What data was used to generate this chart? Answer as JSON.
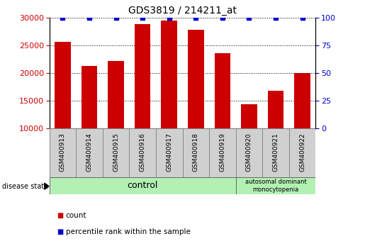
{
  "title": "GDS3819 / 214211_at",
  "samples": [
    "GSM400913",
    "GSM400914",
    "GSM400915",
    "GSM400916",
    "GSM400917",
    "GSM400918",
    "GSM400919",
    "GSM400920",
    "GSM400921",
    "GSM400922"
  ],
  "counts": [
    25600,
    21200,
    22200,
    28800,
    29500,
    27800,
    23500,
    14300,
    16800,
    20000
  ],
  "percentiles": [
    100,
    100,
    100,
    100,
    100,
    100,
    100,
    100,
    100,
    100
  ],
  "ylim_left": [
    10000,
    30000
  ],
  "ylim_right": [
    0,
    100
  ],
  "yticks_left": [
    10000,
    15000,
    20000,
    25000,
    30000
  ],
  "yticks_right": [
    0,
    25,
    50,
    75,
    100
  ],
  "bar_color": "#cc0000",
  "dot_color": "#0000cc",
  "tick_label_bg": "#d0d0d0",
  "control_color": "#b3f0b3",
  "disease_color": "#b3f0b3",
  "control_label": "control",
  "disease_label": "autosomal dominant\nmonocytopenia",
  "disease_state_label": "disease state",
  "legend_count": "count",
  "legend_pct": "percentile rank within the sample",
  "n_control": 7,
  "n_disease": 3
}
